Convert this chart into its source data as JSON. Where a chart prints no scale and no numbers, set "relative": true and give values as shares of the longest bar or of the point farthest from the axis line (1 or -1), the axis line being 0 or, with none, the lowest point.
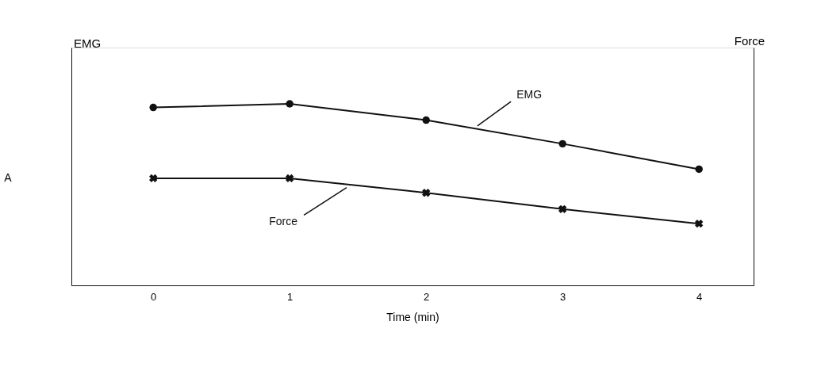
{
  "chart_data": {
    "type": "line",
    "relative": true,
    "xlabel": "Time (min)",
    "ylabel": "EMG",
    "y2label": "Force",
    "x": [
      0,
      1,
      2,
      3,
      4
    ],
    "xlim": [
      -0.6,
      4.4
    ],
    "xticks": [
      0,
      1,
      2,
      3,
      4
    ],
    "grid": false,
    "line_style": "solid",
    "series": [
      {
        "name": "EMG",
        "color": "#111111",
        "marker": "circle",
        "values": [
          0.98,
          1.0,
          0.91,
          0.78,
          0.64
        ]
      },
      {
        "name": "Force",
        "color": "#111111",
        "marker": "cross",
        "values": [
          0.59,
          0.59,
          0.51,
          0.42,
          0.34
        ]
      }
    ],
    "annotations": [
      "A"
    ]
  }
}
